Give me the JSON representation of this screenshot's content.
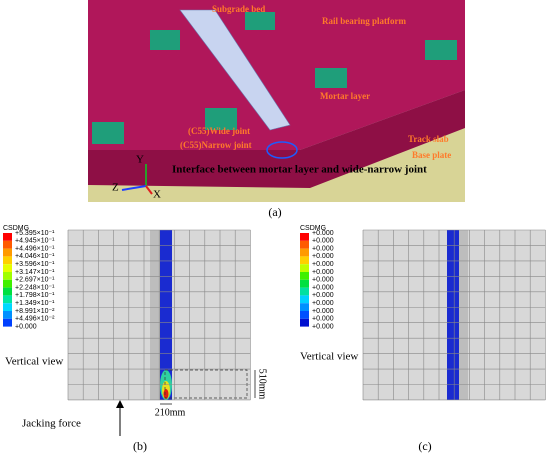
{
  "panel_a": {
    "labels": {
      "subgrade_bed": "Subgrade bed",
      "rail_bearing_platform": "Rail bearing platform",
      "mortar_layer": "Mortar layer",
      "wide_joint": "(C55)Wide joint",
      "narrow_joint": "(C55)Narrow joint",
      "track_slab": "Track slab",
      "base_plate": "Base plate",
      "interface": "Interface between mortar layer and wide-narrow joint",
      "axis_y": "Y",
      "axis_z": "Z",
      "axis_x": "X"
    },
    "caption": "(a)"
  },
  "panel_b": {
    "legend_title": "CSDMG",
    "legend": [
      "+5.395×10⁻¹",
      "+4.945×10⁻¹",
      "+4.496×10⁻¹",
      "+4.046×10⁻¹",
      "+3.596×10⁻¹",
      "+3.147×10⁻¹",
      "+2.697×10⁻¹",
      "+2.248×10⁻¹",
      "+1.798×10⁻¹",
      "+1.349×10⁻¹",
      "+8.991×10⁻²",
      "+4.496×10⁻²",
      "+0.000"
    ],
    "view_label": "Vertical view",
    "height_dim": "510mm",
    "width_dim": "210mm",
    "force_label": "Jacking force",
    "caption": "(b)"
  },
  "panel_c": {
    "legend_title": "CSDMG",
    "legend": [
      "+0.000",
      "+0.000",
      "+0.000",
      "+0.000",
      "+0.000",
      "+0.000",
      "+0.000",
      "+0.000",
      "+0.000",
      "+0.000",
      "+0.000",
      "+0.000",
      "+0.000"
    ],
    "view_label": "Vertical view",
    "caption": "(c)"
  }
}
